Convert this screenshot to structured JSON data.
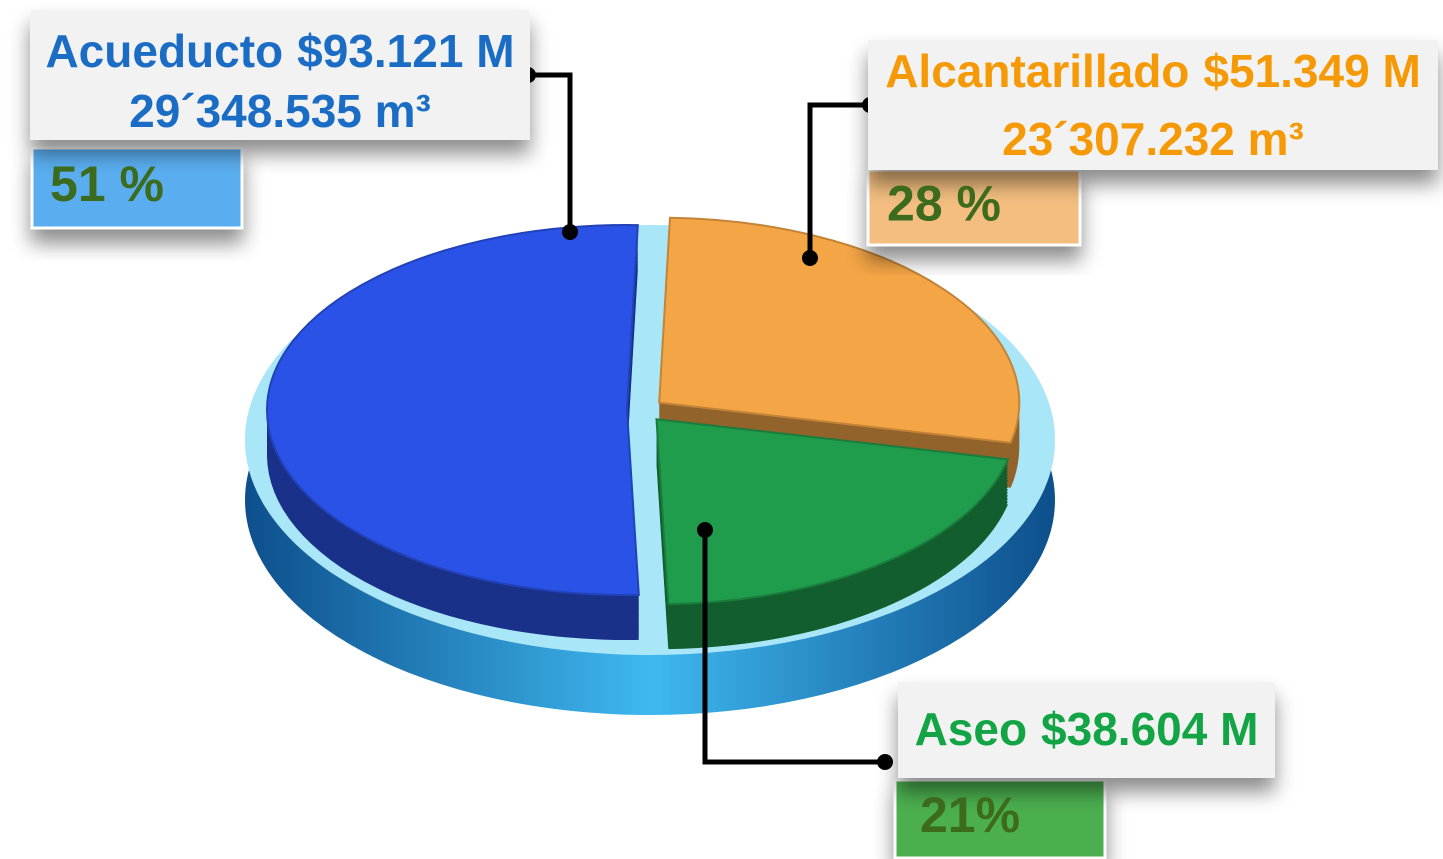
{
  "chart_data": {
    "type": "pie",
    "categories": [
      "Acueducto",
      "Alcantarillado",
      "Aseo"
    ],
    "amount_labels": [
      "$93.121 M",
      "$51.349 M",
      "$38.604 M"
    ],
    "volume_labels": [
      "29´348.535 m³",
      "23´307.232 m³",
      null
    ],
    "values": [
      51,
      28,
      21
    ],
    "value_labels": [
      "51 %",
      "28 %",
      "21%"
    ],
    "colors": [
      "#2b52e6",
      "#f4a546",
      "#1f9c4c"
    ],
    "label_colors": [
      "#1a6cc4",
      "#f59a06",
      "#12a445"
    ]
  }
}
